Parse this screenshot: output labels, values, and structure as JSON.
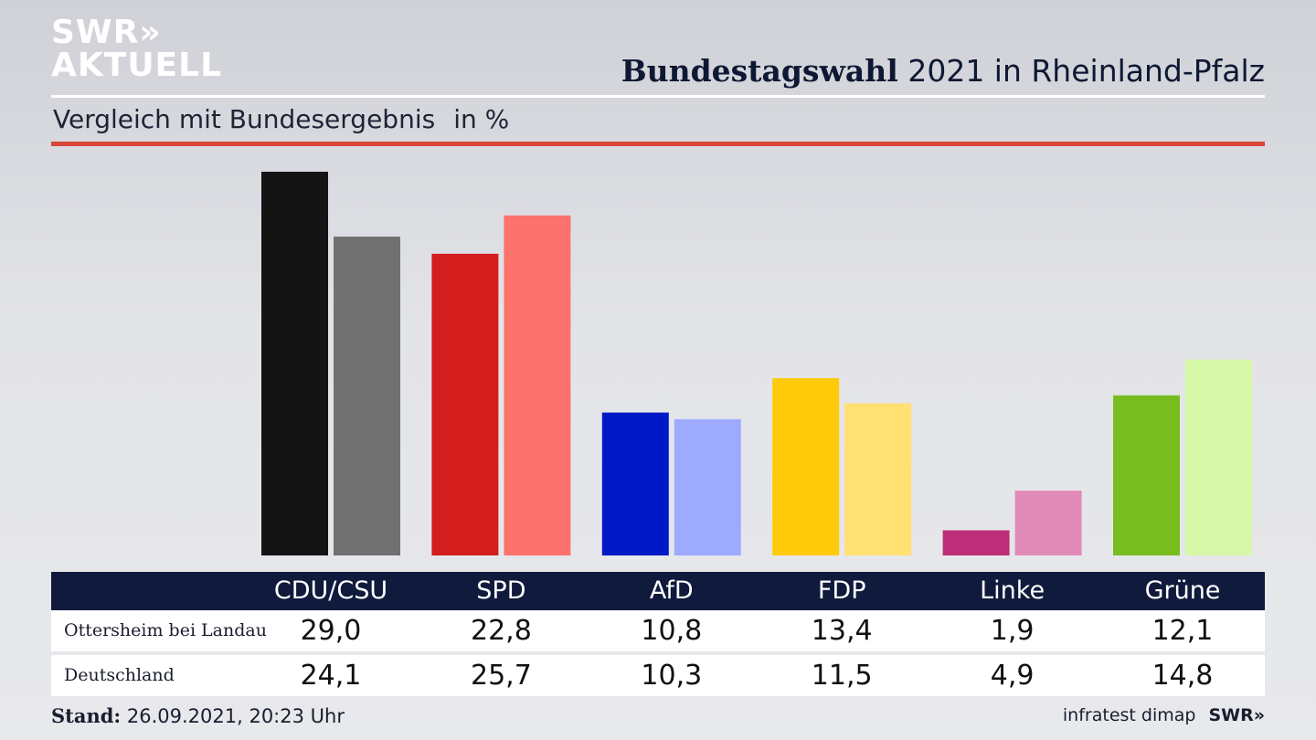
{
  "brand": {
    "logo_line1": "SWR",
    "logo_line2": "AKTUELL",
    "logo_arrows": "»"
  },
  "header": {
    "title_bold": "Bundestagswahl",
    "title_rest": "2021 in Rheinland-Pfalz",
    "subtitle": "Vergleich mit Bundesergebnis",
    "unit": "in %"
  },
  "colors": {
    "primary": [
      "#141414",
      "#d41d1d",
      "#0019c7",
      "#fdcb09",
      "#bf2e78",
      "#78bd1f"
    ],
    "secondary": [
      "#727171",
      "#fe726e",
      "#9eaafe",
      "#ffe072",
      "#e18ab7",
      "#d6f8a8"
    ],
    "header_bg": "#0f1a3c",
    "accent_rule": "#d6473a"
  },
  "chart_data": {
    "type": "bar",
    "categories": [
      "CDU/CSU",
      "SPD",
      "AfD",
      "FDP",
      "Linke",
      "Grüne"
    ],
    "series": [
      {
        "name": "Ottersheim bei Landau",
        "values": [
          29.0,
          22.8,
          10.8,
          13.4,
          1.9,
          12.1
        ]
      },
      {
        "name": "Deutschland",
        "values": [
          24.1,
          25.7,
          10.3,
          11.5,
          4.9,
          14.8
        ]
      }
    ],
    "display_values": [
      [
        "29,0",
        "22,8",
        "10,8",
        "13,4",
        "1,9",
        "12,1"
      ],
      [
        "24,1",
        "25,7",
        "10,3",
        "11,5",
        "4,9",
        "14,8"
      ]
    ],
    "ylim": [
      0,
      29
    ]
  },
  "footer": {
    "stand_label": "Stand:",
    "stand_value": "26.09.2021, 20:23 Uhr",
    "source": "infratest dimap",
    "brand": "SWR»"
  }
}
